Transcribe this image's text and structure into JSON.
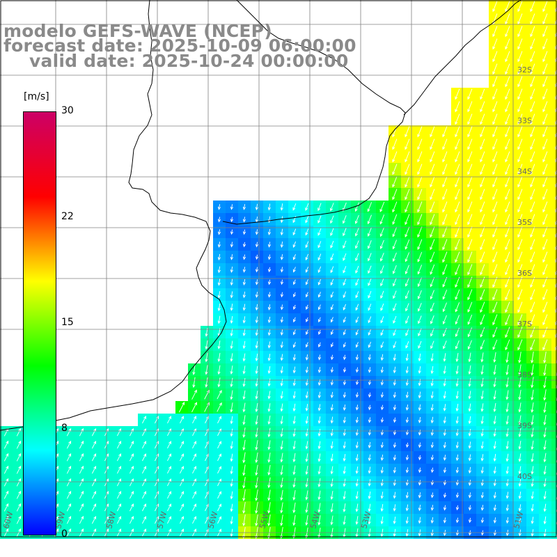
{
  "title": {
    "line1": "modelo GEFS-WAVE (NCEP)",
    "line2": "forecast date: 2025-10-09 06:00:00",
    "line3": "valid date: 2025-10-24 00:00:00"
  },
  "colorbar": {
    "units": "[m/s]",
    "ticks": [
      "30",
      "22",
      "15",
      "8",
      "0"
    ],
    "stops": [
      "#0000ff",
      "#00ffff",
      "#00ff00",
      "#ffff00",
      "#ff0000",
      "#cc0066"
    ]
  },
  "lat_labels": [
    "32S",
    "33S",
    "34S",
    "35S",
    "36S",
    "37S",
    "38S",
    "39S",
    "40S"
  ],
  "lon_labels": [
    "60W",
    "59W",
    "58W",
    "57W",
    "56W",
    "55W",
    "54W",
    "53W",
    "51W"
  ],
  "colors": {
    "title": "#8a8a8a",
    "grid": "#808080",
    "coastline": "#000000",
    "arrows": "#ffffff",
    "land": "#ffffff"
  }
}
